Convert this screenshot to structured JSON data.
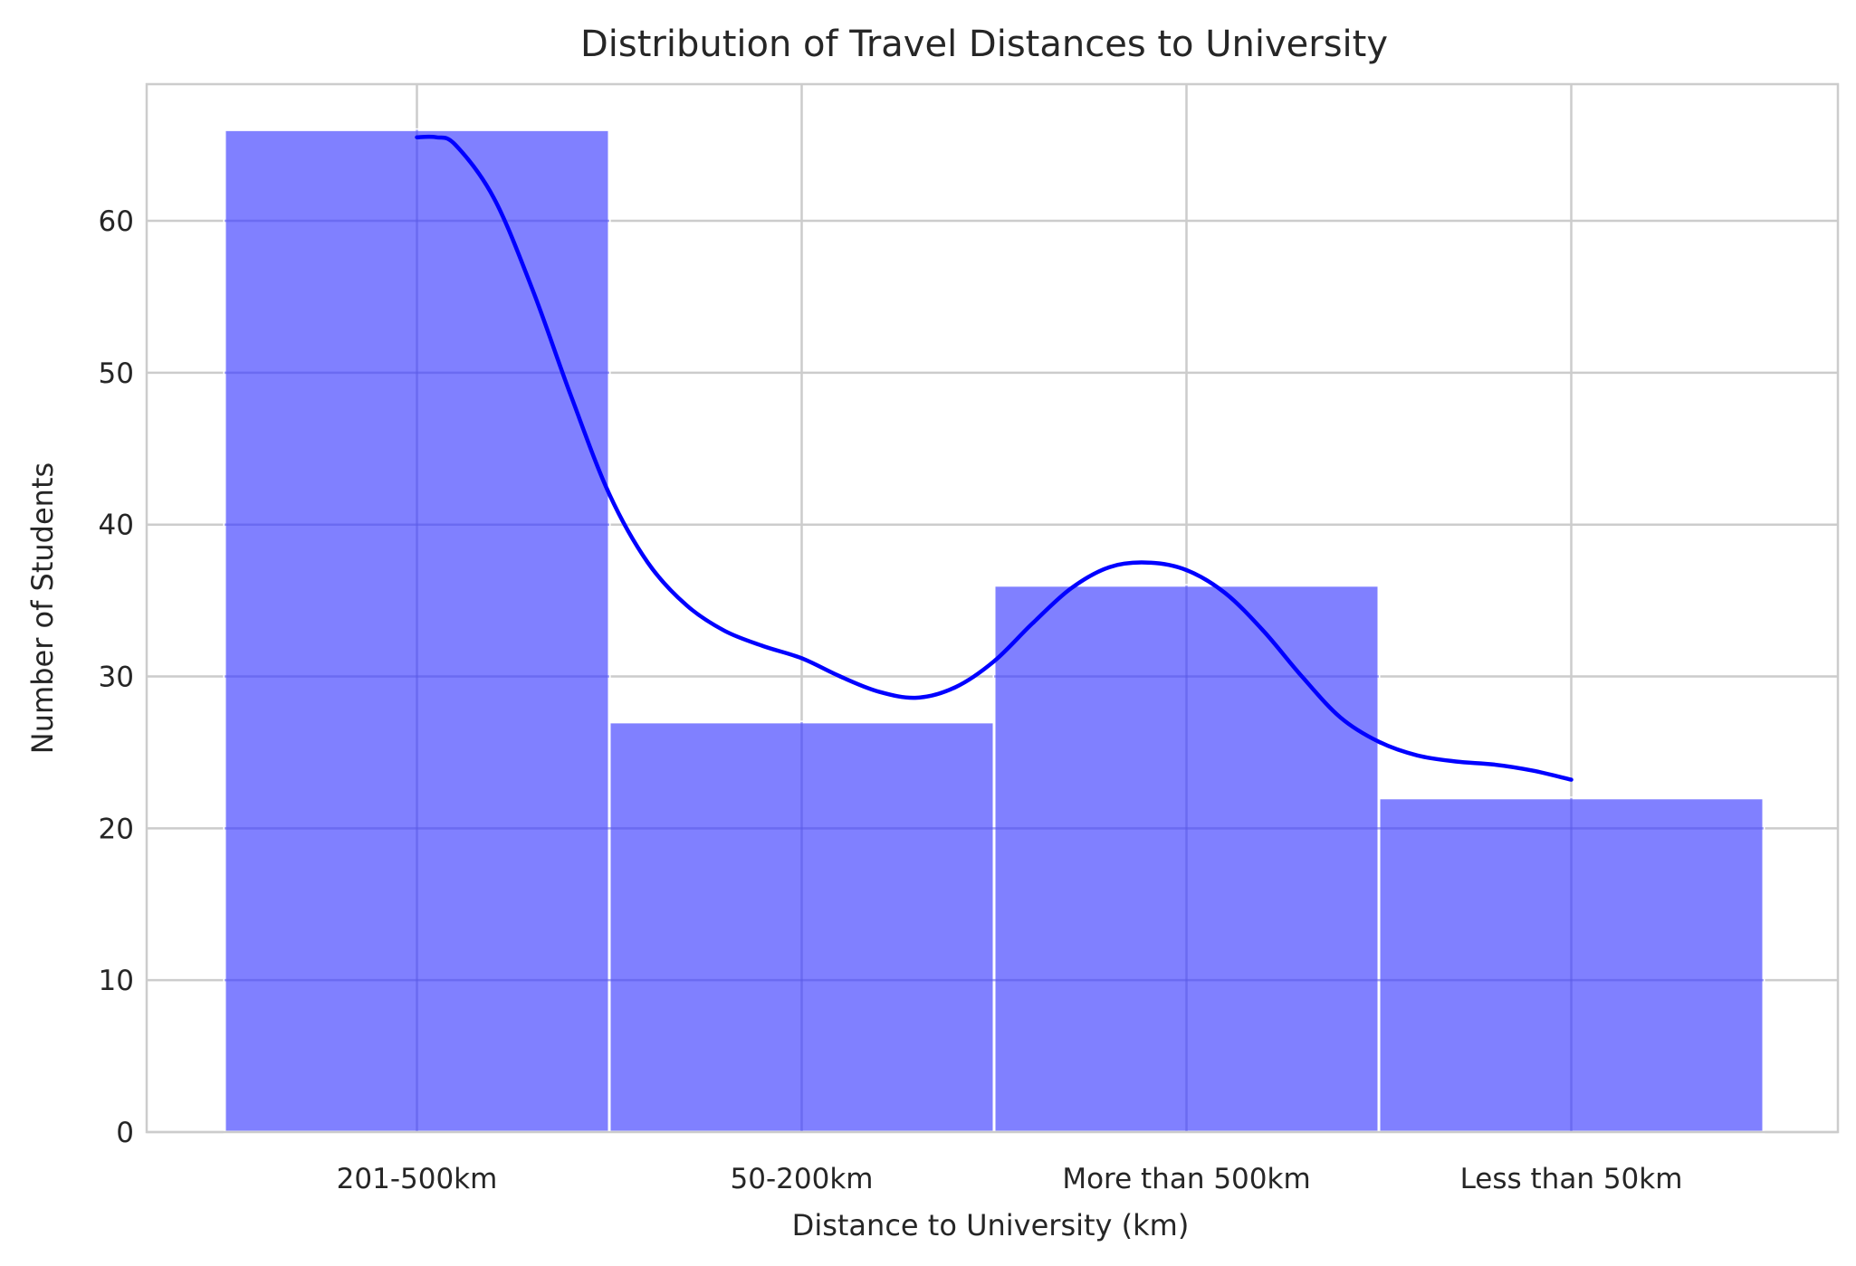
{
  "chart_data": {
    "type": "bar",
    "title": "Distribution of Travel Distances to University",
    "xlabel": "Distance to University (km)",
    "ylabel": "Number of Students",
    "categories": [
      "201-500km",
      "50-200km",
      "More than 500km",
      "Less than 50km"
    ],
    "values": [
      66,
      27,
      36,
      22
    ],
    "ylim": [
      0,
      69
    ],
    "yticks": [
      0,
      10,
      20,
      30,
      40,
      50,
      60
    ],
    "grid": true,
    "kde_curve": {
      "x": [
        0,
        0.05,
        0.1,
        0.2,
        0.3,
        0.4,
        0.5,
        0.6,
        0.7,
        0.8,
        0.9,
        1.0,
        1.1,
        1.2,
        1.3,
        1.4,
        1.5,
        1.6,
        1.7,
        1.8,
        1.9,
        2.0,
        2.1,
        2.2,
        2.3,
        2.4,
        2.5,
        2.6,
        2.7,
        2.8,
        2.9,
        3.0
      ],
      "y": [
        65.5,
        65.5,
        65.0,
        61.5,
        55.5,
        48.5,
        42.0,
        37.5,
        34.7,
        33.0,
        32.0,
        31.2,
        30.0,
        29.0,
        28.6,
        29.3,
        31.0,
        33.5,
        35.8,
        37.2,
        37.5,
        37.0,
        35.5,
        33.0,
        30.0,
        27.3,
        25.7,
        24.8,
        24.4,
        24.2,
        23.8,
        23.2
      ]
    },
    "colors": {
      "bar": "#8080ff",
      "kde": "#0000ff",
      "grid": "#cccccc"
    }
  }
}
